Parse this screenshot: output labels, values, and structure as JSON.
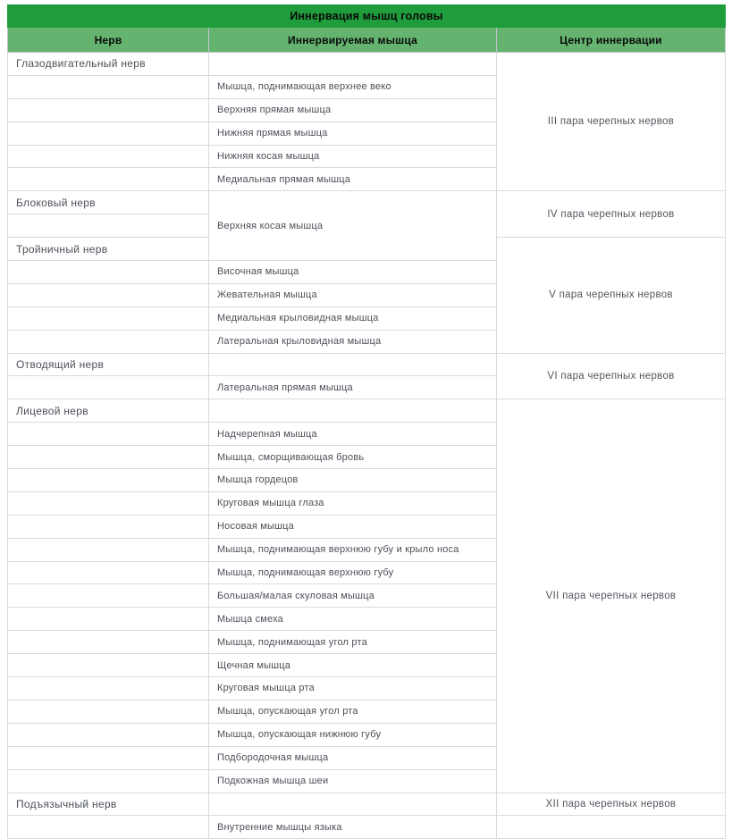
{
  "title": "Иннервация мышц головы",
  "columns": {
    "nerve": "Нерв",
    "muscle": "Иннервируемая мышца",
    "center": "Центр иннервации"
  },
  "colors": {
    "title_bg": "#1f9c3c",
    "header_bg": "#64b36e",
    "border": "#d7dadd",
    "body_text": "#4b5058",
    "header_text": "#0a0a0a"
  },
  "sections": [
    {
      "nerve": "Глазодвигательный нерв",
      "center": "III пара черепных нервов",
      "muscles": [
        "Мышца, поднимающая верхнее веко",
        "Верхняя прямая мышца",
        "Нижняя прямая мышца",
        "Нижняя косая мышца",
        "Медиальная прямая мышца"
      ]
    },
    {
      "nerve": "Блоковый нерв",
      "center": "IV пара черепных нервов",
      "muscles": [
        "Верхняя косая мышца"
      ]
    },
    {
      "nerve": "Тройничный нерв",
      "center": "V пара черепных нервов",
      "muscles": [
        "Височная мышца",
        "Жевательная мышца",
        "Медиальная крыловидная мышца",
        "Латеральная крыловидная мышца"
      ]
    },
    {
      "nerve": "Отводящий нерв",
      "center": "VI пара черепных нервов",
      "muscles": [
        "Латеральная прямая мышца"
      ]
    },
    {
      "nerve": "Лицевой нерв",
      "center": "VII пара черепных нервов",
      "muscles": [
        "Надчерепная мышца",
        "Мышца, сморщивающая бровь",
        "Мышца гордецов",
        "Круговая мышца глаза",
        "Носовая мышца",
        "Мышца, поднимающая верхнюю губу и крыло носа",
        "Мышца, поднимающая верхнюю губу",
        "Большая/малая скуловая мышца",
        "Мышца смеха",
        "Мышца, поднимающая угол рта",
        "Щечная мышца",
        "Круговая мышца рта",
        "Мышца, опускающая угол рта",
        "Мышца, опускающая нижнюю губу",
        "Подбородочная мышца",
        "Подкожная мышца шеи"
      ]
    },
    {
      "nerve": "Подъязычный нерв",
      "center": "XII пара черепных нервов",
      "muscles": [
        "Внутренние мышцы языка"
      ]
    }
  ]
}
